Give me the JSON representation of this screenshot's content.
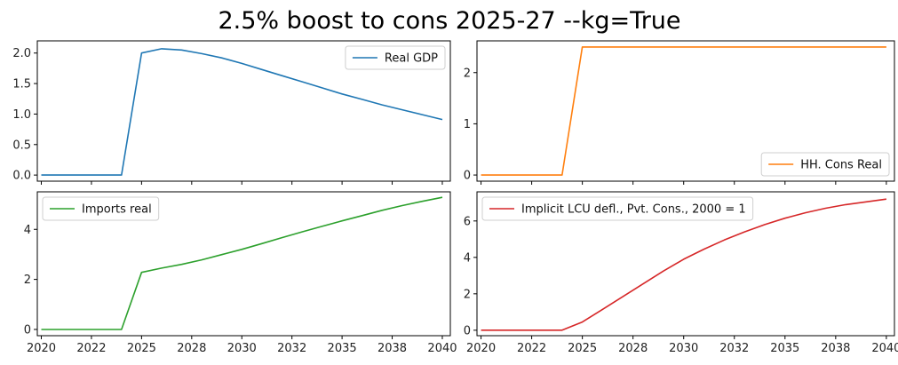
{
  "figure": {
    "title": "2.5% boost to cons 2025-27 --kg=True"
  },
  "chart_data": [
    {
      "type": "line",
      "legend_loc": "upper right",
      "xlim": [
        2019.8,
        2040.4
      ],
      "ylim": [
        -0.1,
        2.2
      ],
      "xticks": [
        2020,
        2022.5,
        2025,
        2027.5,
        2030,
        2032.5,
        2035,
        2037.5,
        2040
      ],
      "xtick_labels": [
        "",
        "",
        "",
        "",
        "",
        "",
        "",
        "",
        ""
      ],
      "yticks": [
        0,
        0.5,
        1.0,
        1.5,
        2.0
      ],
      "ytick_labels": [
        "0.0",
        "0.5",
        "1.0",
        "1.5",
        "2.0"
      ],
      "series": [
        {
          "name": "Real GDP",
          "color": "#1f77b4",
          "x": [
            2020,
            2021,
            2022,
            2023,
            2024,
            2025,
            2026,
            2027,
            2028,
            2029,
            2030,
            2031,
            2032,
            2033,
            2034,
            2035,
            2036,
            2037,
            2038,
            2039,
            2040
          ],
          "y": [
            0,
            0,
            0,
            0,
            0,
            2.0,
            2.07,
            2.05,
            1.99,
            1.92,
            1.83,
            1.73,
            1.63,
            1.53,
            1.43,
            1.33,
            1.24,
            1.15,
            1.07,
            0.99,
            0.91
          ]
        }
      ]
    },
    {
      "type": "line",
      "legend_loc": "lower right",
      "xlim": [
        2019.8,
        2040.4
      ],
      "ylim": [
        -0.12,
        2.62
      ],
      "xticks": [
        2020,
        2022.5,
        2025,
        2027.5,
        2030,
        2032.5,
        2035,
        2037.5,
        2040
      ],
      "xtick_labels": [
        "",
        "",
        "",
        "",
        "",
        "",
        "",
        "",
        ""
      ],
      "yticks": [
        0,
        1,
        2
      ],
      "ytick_labels": [
        "0",
        "1",
        "2"
      ],
      "series": [
        {
          "name": "HH. Cons Real",
          "color": "#ff7f0e",
          "x": [
            2020,
            2021,
            2022,
            2023,
            2024,
            2025,
            2026,
            2027,
            2028,
            2029,
            2030,
            2031,
            2032,
            2033,
            2034,
            2035,
            2036,
            2037,
            2038,
            2039,
            2040
          ],
          "y": [
            0,
            0,
            0,
            0,
            0,
            2.5,
            2.5,
            2.5,
            2.5,
            2.5,
            2.5,
            2.5,
            2.5,
            2.5,
            2.5,
            2.5,
            2.5,
            2.5,
            2.5,
            2.5,
            2.5
          ]
        }
      ]
    },
    {
      "type": "line",
      "legend_loc": "upper left",
      "xlim": [
        2019.8,
        2040.4
      ],
      "ylim": [
        -0.25,
        5.5
      ],
      "xticks": [
        2020,
        2022.5,
        2025,
        2027.5,
        2030,
        2032.5,
        2035,
        2037.5,
        2040
      ],
      "xtick_labels": [
        "2020",
        "2022",
        "2025",
        "2028",
        "2030",
        "2032",
        "2035",
        "2038",
        "2040"
      ],
      "yticks": [
        0,
        2,
        4
      ],
      "ytick_labels": [
        "0",
        "2",
        "4"
      ],
      "series": [
        {
          "name": "Imports real",
          "color": "#2ca02c",
          "x": [
            2020,
            2021,
            2022,
            2023,
            2024,
            2025,
            2026,
            2027,
            2028,
            2029,
            2030,
            2031,
            2032,
            2033,
            2034,
            2035,
            2036,
            2037,
            2038,
            2039,
            2040
          ],
          "y": [
            0,
            0,
            0,
            0,
            0,
            2.28,
            2.45,
            2.6,
            2.78,
            2.99,
            3.2,
            3.43,
            3.67,
            3.9,
            4.12,
            4.34,
            4.55,
            4.76,
            4.95,
            5.12,
            5.28
          ]
        }
      ]
    },
    {
      "type": "line",
      "legend_loc": "upper left",
      "xlim": [
        2019.8,
        2040.4
      ],
      "ylim": [
        -0.3,
        7.6
      ],
      "xticks": [
        2020,
        2022.5,
        2025,
        2027.5,
        2030,
        2032.5,
        2035,
        2037.5,
        2040
      ],
      "xtick_labels": [
        "2020",
        "2022",
        "2025",
        "2028",
        "2030",
        "2032",
        "2035",
        "2038",
        "2040"
      ],
      "yticks": [
        0,
        2,
        4,
        6
      ],
      "ytick_labels": [
        "0",
        "2",
        "4",
        "6"
      ],
      "series": [
        {
          "name": "Implicit LCU defl., Pvt. Cons., 2000 = 1",
          "color": "#d62728",
          "x": [
            2020,
            2021,
            2022,
            2023,
            2024,
            2025,
            2026,
            2027,
            2028,
            2029,
            2030,
            2031,
            2032,
            2033,
            2034,
            2035,
            2036,
            2037,
            2038,
            2039,
            2040
          ],
          "y": [
            0,
            0,
            0,
            0,
            0,
            0.45,
            1.15,
            1.85,
            2.55,
            3.25,
            3.9,
            4.45,
            4.95,
            5.4,
            5.8,
            6.15,
            6.45,
            6.7,
            6.9,
            7.05,
            7.2
          ]
        }
      ]
    }
  ]
}
